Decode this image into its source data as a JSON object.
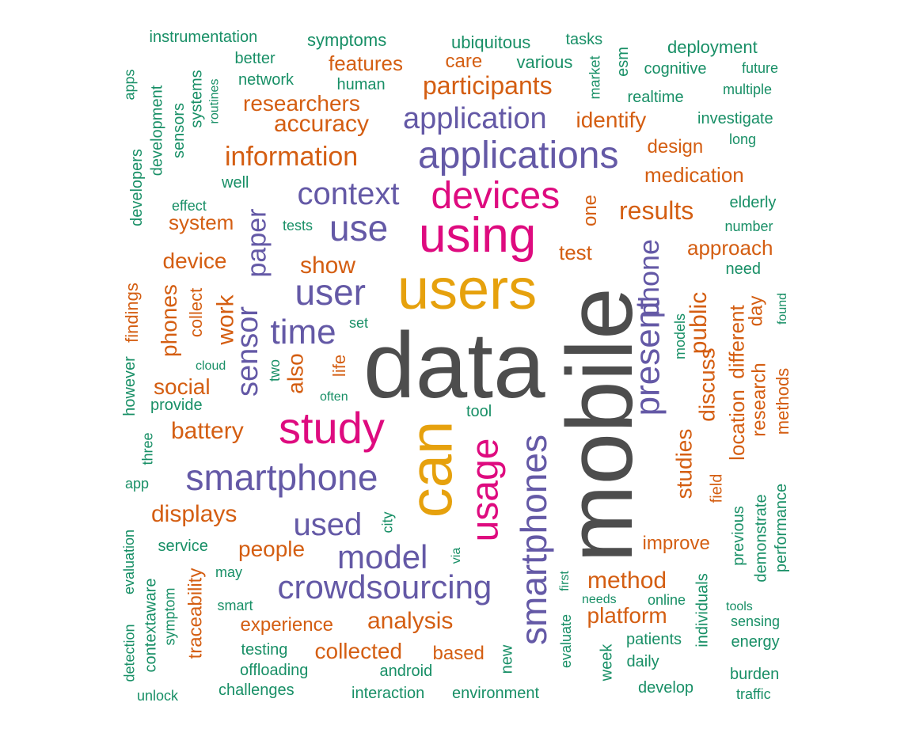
{
  "palette": {
    "gray": "#4d4d4d",
    "gold": "#e6a10d",
    "magenta": "#de0b7f",
    "purple": "#6459a6",
    "orange": "#d45e12",
    "green": "#188f66"
  },
  "words": [
    {
      "text": "data",
      "color": "gray",
      "weight": 10,
      "rot": 0
    },
    {
      "text": "mobile",
      "color": "gray",
      "weight": 10,
      "rot": -90
    },
    {
      "text": "users",
      "color": "gold",
      "weight": 8,
      "rot": 0
    },
    {
      "text": "can",
      "color": "gold",
      "weight": 8,
      "rot": -90
    },
    {
      "text": "using",
      "color": "magenta",
      "weight": 7,
      "rot": 0
    },
    {
      "text": "study",
      "color": "magenta",
      "weight": 6,
      "rot": 0
    },
    {
      "text": "usage",
      "color": "magenta",
      "weight": 6,
      "rot": -90
    },
    {
      "text": "devices",
      "color": "magenta",
      "weight": 5,
      "rot": 0
    },
    {
      "text": "applications",
      "color": "purple",
      "weight": 5,
      "rot": 0
    },
    {
      "text": "smartphone",
      "color": "purple",
      "weight": 5,
      "rot": 0
    },
    {
      "text": "smartphones",
      "color": "purple",
      "weight": 5,
      "rot": -90
    },
    {
      "text": "crowdsourcing",
      "color": "purple",
      "weight": 5,
      "rot": 0
    },
    {
      "text": "present",
      "color": "purple",
      "weight": 5,
      "rot": -90
    },
    {
      "text": "use",
      "color": "purple",
      "weight": 5,
      "rot": 0
    },
    {
      "text": "user",
      "color": "purple",
      "weight": 5,
      "rot": 0
    },
    {
      "text": "time",
      "color": "purple",
      "weight": 4,
      "rot": 0
    },
    {
      "text": "model",
      "color": "purple",
      "weight": 4,
      "rot": 0
    },
    {
      "text": "used",
      "color": "purple",
      "weight": 4,
      "rot": 0
    },
    {
      "text": "application",
      "color": "purple",
      "weight": 4,
      "rot": 0
    },
    {
      "text": "context",
      "color": "purple",
      "weight": 4,
      "rot": 0
    },
    {
      "text": "sensor",
      "color": "purple",
      "weight": 4,
      "rot": -90
    },
    {
      "text": "phone",
      "color": "purple",
      "weight": 4,
      "rot": -90
    },
    {
      "text": "paper",
      "color": "purple",
      "weight": 4,
      "rot": -90
    },
    {
      "text": "information",
      "color": "orange",
      "weight": 3,
      "rot": 0
    },
    {
      "text": "participants",
      "color": "orange",
      "weight": 3,
      "rot": 0
    },
    {
      "text": "accuracy",
      "color": "orange",
      "weight": 3,
      "rot": 0
    },
    {
      "text": "researchers",
      "color": "orange",
      "weight": 2,
      "rot": 0
    },
    {
      "text": "features",
      "color": "orange",
      "weight": 2,
      "rot": 0
    },
    {
      "text": "care",
      "color": "orange",
      "weight": 2,
      "rot": 0
    },
    {
      "text": "identify",
      "color": "orange",
      "weight": 2,
      "rot": 0
    },
    {
      "text": "design",
      "color": "orange",
      "weight": 2,
      "rot": 0
    },
    {
      "text": "medication",
      "color": "orange",
      "weight": 2,
      "rot": 0
    },
    {
      "text": "results",
      "color": "orange",
      "weight": 3,
      "rot": 0
    },
    {
      "text": "approach",
      "color": "orange",
      "weight": 2,
      "rot": 0
    },
    {
      "text": "test",
      "color": "orange",
      "weight": 2,
      "rot": 0
    },
    {
      "text": "one",
      "color": "orange",
      "weight": 2,
      "rot": -90
    },
    {
      "text": "show",
      "color": "orange",
      "weight": 3,
      "rot": 0
    },
    {
      "text": "system",
      "color": "orange",
      "weight": 2,
      "rot": 0
    },
    {
      "text": "device",
      "color": "orange",
      "weight": 3,
      "rot": 0
    },
    {
      "text": "work",
      "color": "orange",
      "weight": 3,
      "rot": -90
    },
    {
      "text": "phones",
      "color": "orange",
      "weight": 3,
      "rot": -90
    },
    {
      "text": "collect",
      "color": "orange",
      "weight": 2,
      "rot": -90
    },
    {
      "text": "findings",
      "color": "orange",
      "weight": 2,
      "rot": -90
    },
    {
      "text": "social",
      "color": "orange",
      "weight": 3,
      "rot": 0
    },
    {
      "text": "battery",
      "color": "orange",
      "weight": 3,
      "rot": 0
    },
    {
      "text": "also",
      "color": "orange",
      "weight": 3,
      "rot": -90
    },
    {
      "text": "life",
      "color": "orange",
      "weight": 2,
      "rot": -90
    },
    {
      "text": "displays",
      "color": "orange",
      "weight": 3,
      "rot": 0
    },
    {
      "text": "people",
      "color": "orange",
      "weight": 3,
      "rot": 0
    },
    {
      "text": "analysis",
      "color": "orange",
      "weight": 3,
      "rot": 0
    },
    {
      "text": "experience",
      "color": "orange",
      "weight": 2,
      "rot": 0
    },
    {
      "text": "collected",
      "color": "orange",
      "weight": 3,
      "rot": 0
    },
    {
      "text": "based",
      "color": "orange",
      "weight": 2,
      "rot": 0
    },
    {
      "text": "traceability",
      "color": "orange",
      "weight": 2,
      "rot": -90
    },
    {
      "text": "method",
      "color": "orange",
      "weight": 3,
      "rot": 0
    },
    {
      "text": "platform",
      "color": "orange",
      "weight": 3,
      "rot": 0
    },
    {
      "text": "improve",
      "color": "orange",
      "weight": 3,
      "rot": 0
    },
    {
      "text": "public",
      "color": "orange",
      "weight": 3,
      "rot": -90
    },
    {
      "text": "discuss",
      "color": "orange",
      "weight": 3,
      "rot": -90
    },
    {
      "text": "studies",
      "color": "orange",
      "weight": 3,
      "rot": -90
    },
    {
      "text": "location",
      "color": "orange",
      "weight": 3,
      "rot": -90
    },
    {
      "text": "different",
      "color": "orange",
      "weight": 3,
      "rot": -90
    },
    {
      "text": "research",
      "color": "orange",
      "weight": 3,
      "rot": -90
    },
    {
      "text": "day",
      "color": "orange",
      "weight": 2,
      "rot": -90
    },
    {
      "text": "methods",
      "color": "orange",
      "weight": 2,
      "rot": -90
    },
    {
      "text": "field",
      "color": "orange",
      "weight": 2,
      "rot": -90
    },
    {
      "text": "instrumentation",
      "color": "green",
      "weight": 1,
      "rot": 0
    },
    {
      "text": "symptoms",
      "color": "green",
      "weight": 1,
      "rot": 0
    },
    {
      "text": "ubiquitous",
      "color": "green",
      "weight": 1,
      "rot": 0
    },
    {
      "text": "tasks",
      "color": "green",
      "weight": 1,
      "rot": 0
    },
    {
      "text": "esm",
      "color": "green",
      "weight": 1,
      "rot": -90
    },
    {
      "text": "deployment",
      "color": "green",
      "weight": 1,
      "rot": 0
    },
    {
      "text": "better",
      "color": "green",
      "weight": 1,
      "rot": 0
    },
    {
      "text": "various",
      "color": "green",
      "weight": 1,
      "rot": 0
    },
    {
      "text": "market",
      "color": "green",
      "weight": 1,
      "rot": -90
    },
    {
      "text": "cognitive",
      "color": "green",
      "weight": 1,
      "rot": 0
    },
    {
      "text": "future",
      "color": "green",
      "weight": 1,
      "rot": 0
    },
    {
      "text": "network",
      "color": "green",
      "weight": 1,
      "rot": 0
    },
    {
      "text": "human",
      "color": "green",
      "weight": 1,
      "rot": 0
    },
    {
      "text": "multiple",
      "color": "green",
      "weight": 1,
      "rot": 0
    },
    {
      "text": "realtime",
      "color": "green",
      "weight": 1,
      "rot": 0
    },
    {
      "text": "apps",
      "color": "green",
      "weight": 1,
      "rot": -90
    },
    {
      "text": "systems",
      "color": "green",
      "weight": 1,
      "rot": -90
    },
    {
      "text": "routines",
      "color": "green",
      "weight": 1,
      "rot": -90
    },
    {
      "text": "investigate",
      "color": "green",
      "weight": 1,
      "rot": 0
    },
    {
      "text": "development",
      "color": "green",
      "weight": 1,
      "rot": -90
    },
    {
      "text": "sensors",
      "color": "green",
      "weight": 1,
      "rot": -90
    },
    {
      "text": "long",
      "color": "green",
      "weight": 1,
      "rot": 0
    },
    {
      "text": "developers",
      "color": "green",
      "weight": 1,
      "rot": -90
    },
    {
      "text": "well",
      "color": "green",
      "weight": 1,
      "rot": 0
    },
    {
      "text": "elderly",
      "color": "green",
      "weight": 1,
      "rot": 0
    },
    {
      "text": "effect",
      "color": "green",
      "weight": 1,
      "rot": 0
    },
    {
      "text": "tests",
      "color": "green",
      "weight": 1,
      "rot": 0
    },
    {
      "text": "number",
      "color": "green",
      "weight": 1,
      "rot": 0
    },
    {
      "text": "need",
      "color": "green",
      "weight": 1,
      "rot": 0
    },
    {
      "text": "found",
      "color": "green",
      "weight": 1,
      "rot": -90
    },
    {
      "text": "set",
      "color": "green",
      "weight": 1,
      "rot": 0
    },
    {
      "text": "models",
      "color": "green",
      "weight": 1,
      "rot": -90
    },
    {
      "text": "cloud",
      "color": "green",
      "weight": 1,
      "rot": 0
    },
    {
      "text": "two",
      "color": "green",
      "weight": 1,
      "rot": -90
    },
    {
      "text": "however",
      "color": "green",
      "weight": 1,
      "rot": -90
    },
    {
      "text": "often",
      "color": "green",
      "weight": 1,
      "rot": 0
    },
    {
      "text": "provide",
      "color": "green",
      "weight": 1,
      "rot": 0
    },
    {
      "text": "tool",
      "color": "green",
      "weight": 1,
      "rot": 0
    },
    {
      "text": "three",
      "color": "green",
      "weight": 1,
      "rot": -90
    },
    {
      "text": "app",
      "color": "green",
      "weight": 1,
      "rot": 0
    },
    {
      "text": "city",
      "color": "green",
      "weight": 1,
      "rot": -90
    },
    {
      "text": "previous",
      "color": "green",
      "weight": 1,
      "rot": -90
    },
    {
      "text": "demonstrate",
      "color": "green",
      "weight": 1,
      "rot": -90
    },
    {
      "text": "performance",
      "color": "green",
      "weight": 1,
      "rot": -90
    },
    {
      "text": "service",
      "color": "green",
      "weight": 1,
      "rot": 0
    },
    {
      "text": "via",
      "color": "green",
      "weight": 1,
      "rot": -90
    },
    {
      "text": "may",
      "color": "green",
      "weight": 1,
      "rot": 0
    },
    {
      "text": "individuals",
      "color": "green",
      "weight": 1,
      "rot": -90
    },
    {
      "text": "first",
      "color": "green",
      "weight": 1,
      "rot": -90
    },
    {
      "text": "evaluation",
      "color": "green",
      "weight": 1,
      "rot": -90
    },
    {
      "text": "detection",
      "color": "green",
      "weight": 1,
      "rot": -90
    },
    {
      "text": "contextaware",
      "color": "green",
      "weight": 1,
      "rot": -90
    },
    {
      "text": "symptom",
      "color": "green",
      "weight": 1,
      "rot": -90
    },
    {
      "text": "smart",
      "color": "green",
      "weight": 1,
      "rot": 0
    },
    {
      "text": "needs",
      "color": "green",
      "weight": 1,
      "rot": 0
    },
    {
      "text": "online",
      "color": "green",
      "weight": 1,
      "rot": 0
    },
    {
      "text": "tools",
      "color": "green",
      "weight": 1,
      "rot": 0
    },
    {
      "text": "sensing",
      "color": "green",
      "weight": 1,
      "rot": 0
    },
    {
      "text": "evaluate",
      "color": "green",
      "weight": 1,
      "rot": -90
    },
    {
      "text": "patients",
      "color": "green",
      "weight": 1,
      "rot": 0
    },
    {
      "text": "energy",
      "color": "green",
      "weight": 1,
      "rot": 0
    },
    {
      "text": "testing",
      "color": "green",
      "weight": 1,
      "rot": 0
    },
    {
      "text": "new",
      "color": "green",
      "weight": 1,
      "rot": -90
    },
    {
      "text": "daily",
      "color": "green",
      "weight": 1,
      "rot": 0
    },
    {
      "text": "week",
      "color": "green",
      "weight": 1,
      "rot": -90
    },
    {
      "text": "offloading",
      "color": "green",
      "weight": 1,
      "rot": 0
    },
    {
      "text": "android",
      "color": "green",
      "weight": 1,
      "rot": 0
    },
    {
      "text": "burden",
      "color": "green",
      "weight": 1,
      "rot": 0
    },
    {
      "text": "develop",
      "color": "green",
      "weight": 1,
      "rot": 0
    },
    {
      "text": "unlock",
      "color": "green",
      "weight": 1,
      "rot": 0
    },
    {
      "text": "challenges",
      "color": "green",
      "weight": 1,
      "rot": 0
    },
    {
      "text": "interaction",
      "color": "green",
      "weight": 1,
      "rot": 0
    },
    {
      "text": "environment",
      "color": "green",
      "weight": 1,
      "rot": 0
    },
    {
      "text": "traffic",
      "color": "green",
      "weight": 1,
      "rot": 0
    }
  ]
}
